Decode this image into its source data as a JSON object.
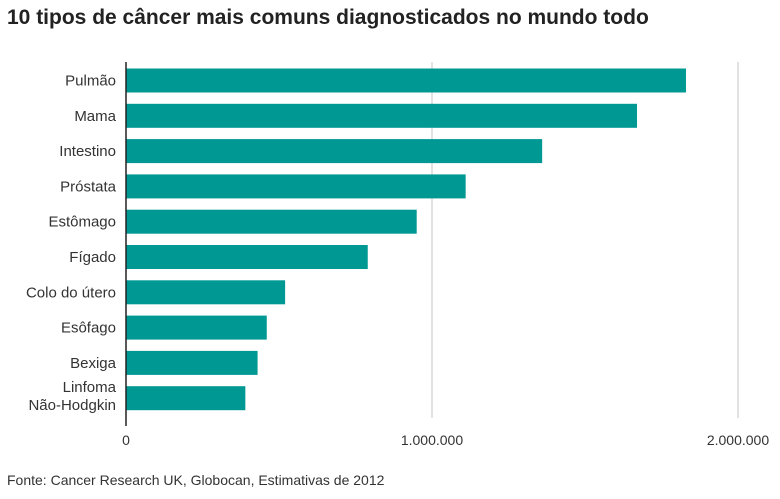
{
  "chart_data": {
    "type": "bar",
    "orientation": "horizontal",
    "title": "10 tipos de câncer mais comuns diagnosticados no mundo todo",
    "categories": [
      "Pulmão",
      "Mama",
      "Intestino",
      "Próstata",
      "Estômago",
      "Fígado",
      "Colo do útero",
      "Esôfago",
      "Bexiga",
      "Linfoma Não-Hodgkin"
    ],
    "values": [
      1830000,
      1670000,
      1360000,
      1110000,
      950000,
      790000,
      520000,
      460000,
      430000,
      390000
    ],
    "xlim": [
      0,
      2000000
    ],
    "xticks": [
      0,
      1000000,
      2000000
    ],
    "xtick_labels": [
      "0",
      "1.000.000",
      "2.000.000"
    ],
    "xlabel": "",
    "ylabel": "",
    "grid": true,
    "bar_color": "#009893",
    "grid_color": "#d9d9d9"
  },
  "footer": {
    "source": "Fonte: Cancer Research UK, Globocan, Estimativas de 2012"
  }
}
